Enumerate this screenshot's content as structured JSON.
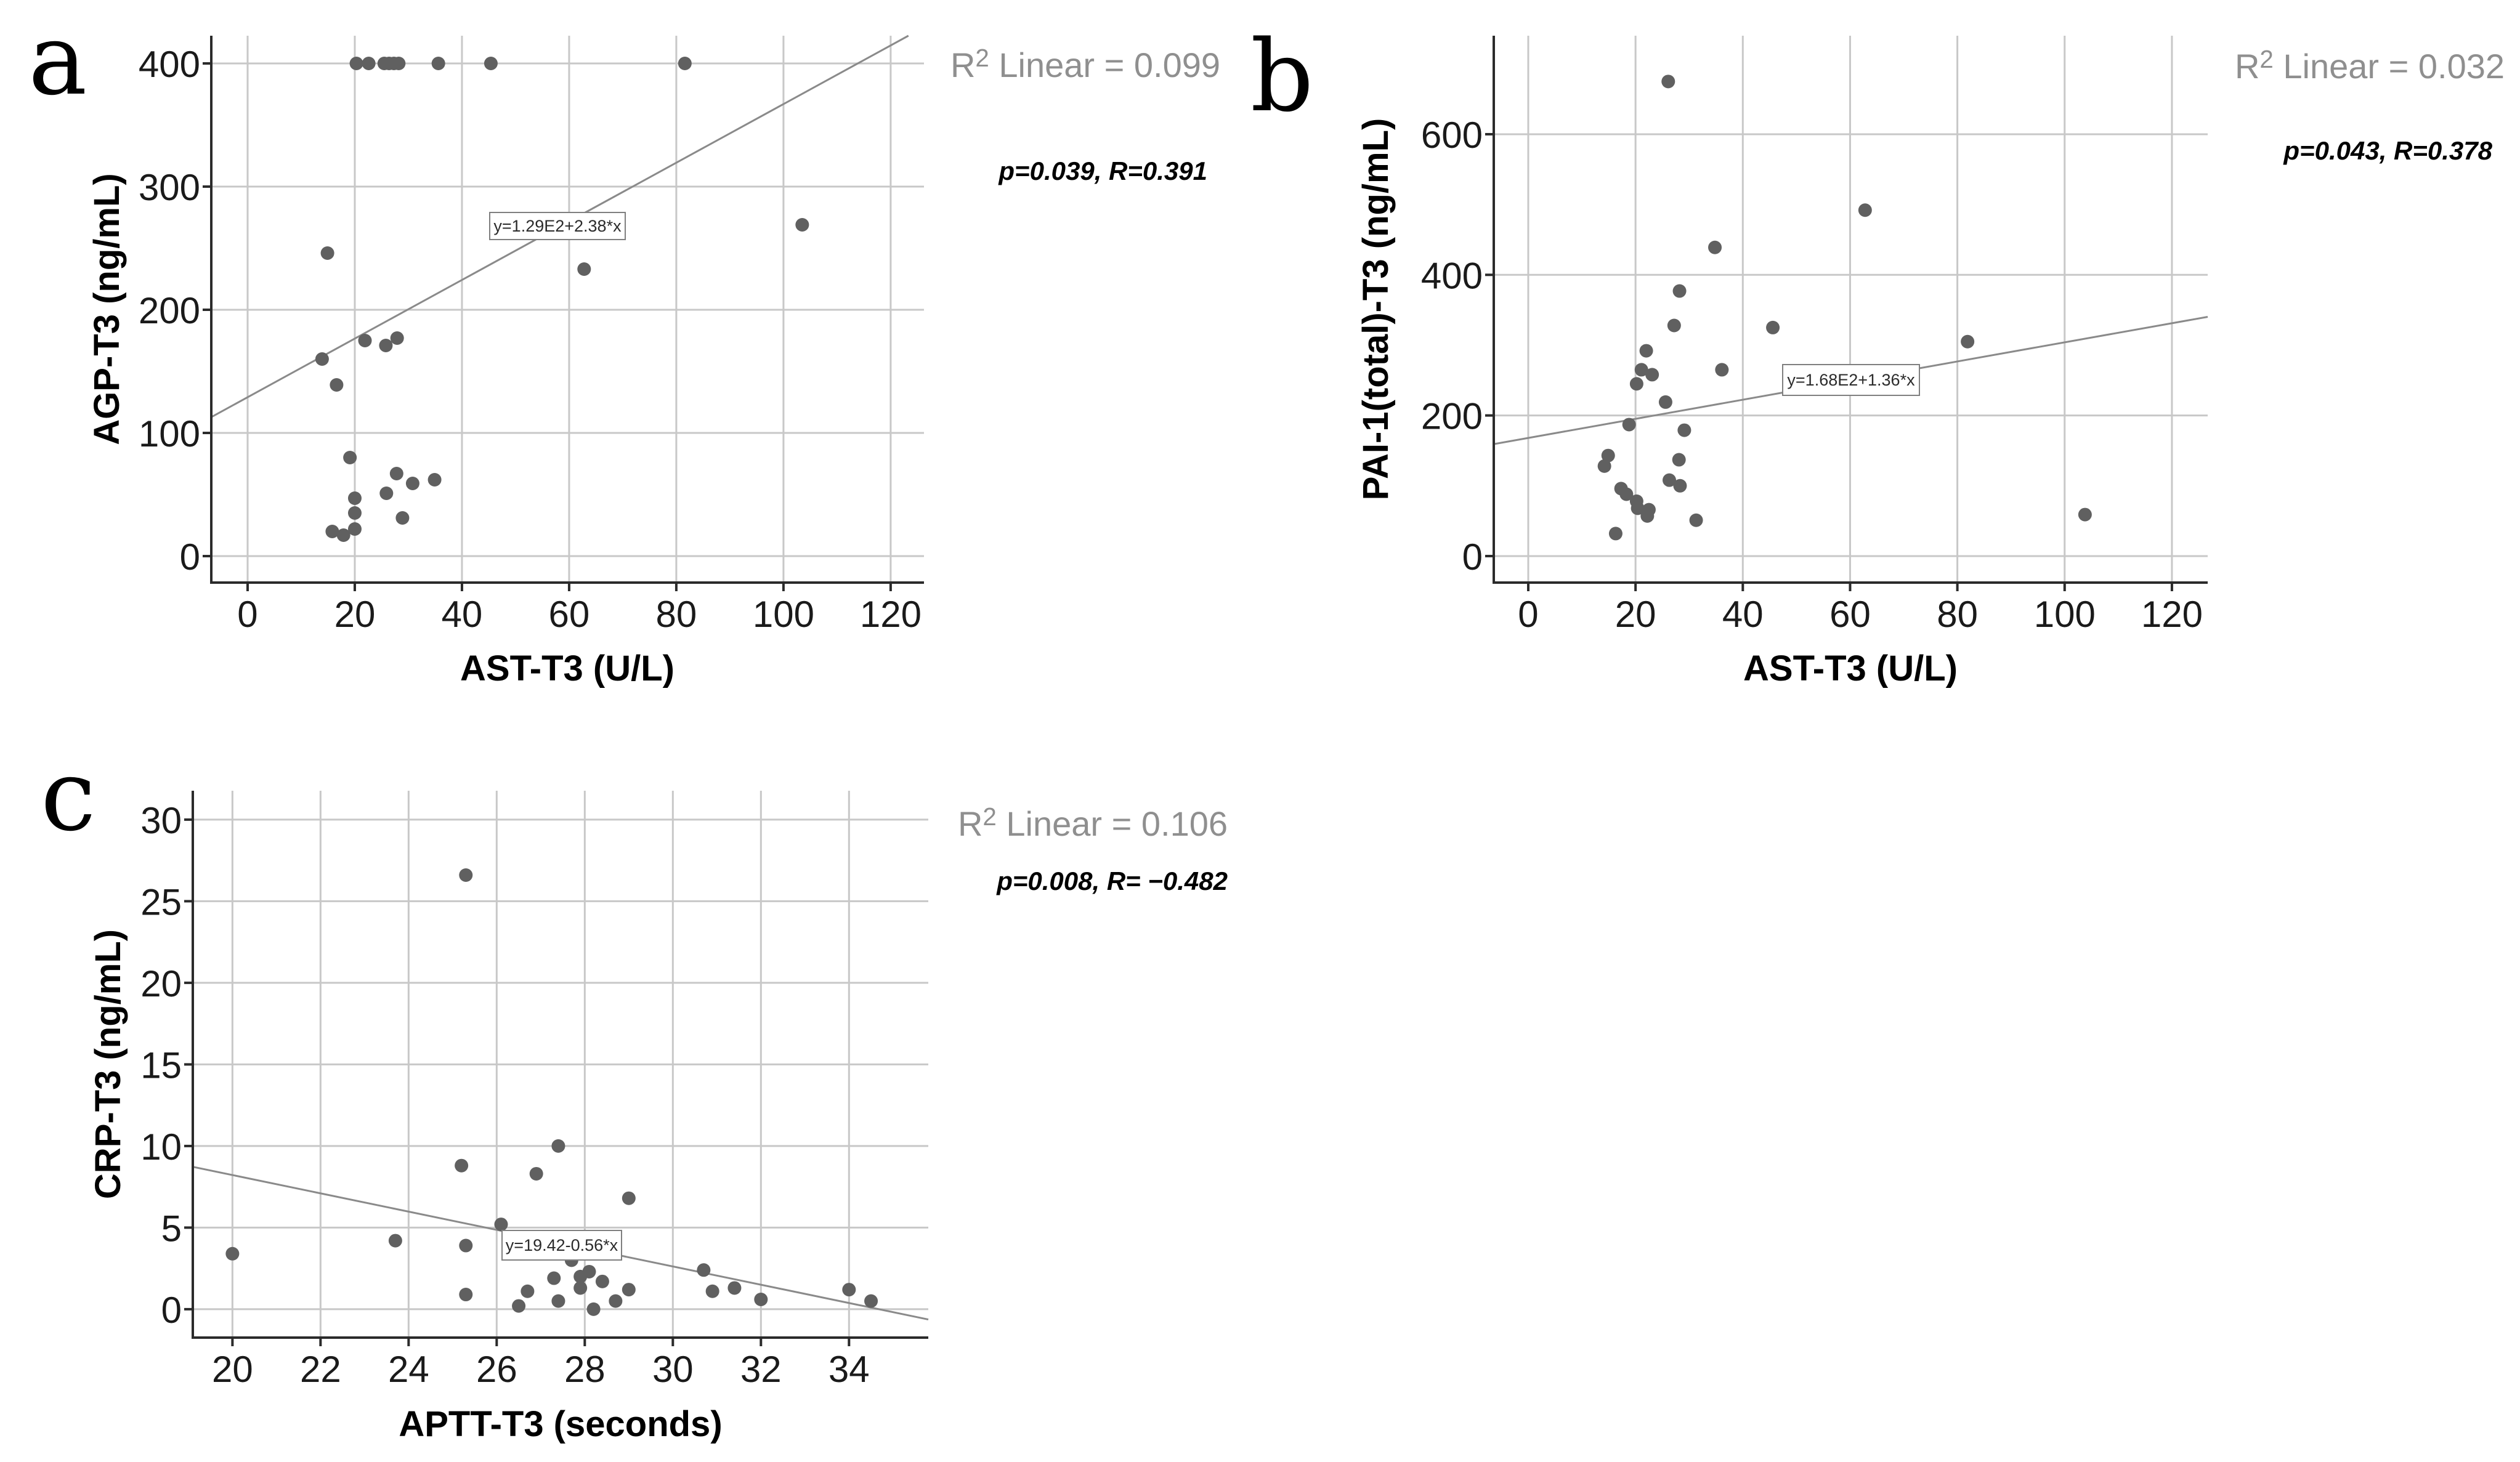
{
  "colors": {
    "dot": "#606060",
    "grid": "#c8c8c8",
    "axis": "#2b2b2b",
    "regression_line": "#8a8a8a",
    "r2_text": "#8f8f8f",
    "p_text": "#000000",
    "equation_border": "#7f7f7f",
    "tick_label": "#1a1a1a",
    "background": "#ffffff"
  },
  "chart_data": [
    {
      "id": "a",
      "type": "scatter",
      "panel_label": "a",
      "xlabel": "AST-T3 (U/L)",
      "ylabel": "AGP-T3 (ng/mL)",
      "r2": {
        "base": "R",
        "sup": "2",
        "rest": " Linear = 0.099"
      },
      "p_label": "p=0.039, R=0.391",
      "equation": "y=1.29E2+2.38*x",
      "regression": {
        "intercept": 129,
        "slope": 2.38
      },
      "xlim": [
        -6.78,
        126.22
      ],
      "ylim": [
        -21.5,
        422.5
      ],
      "xticks": [
        0,
        20,
        40,
        60,
        80,
        100,
        120
      ],
      "yticks": [
        0,
        100,
        200,
        300,
        400
      ],
      "grid": true,
      "points": [
        [
          20.3,
          400
        ],
        [
          22.6,
          400
        ],
        [
          25.5,
          400
        ],
        [
          26.4,
          400
        ],
        [
          27.3,
          400
        ],
        [
          28.2,
          400
        ],
        [
          35.6,
          400
        ],
        [
          45.4,
          400
        ],
        [
          81.6,
          400
        ],
        [
          14.9,
          246
        ],
        [
          13.9,
          160
        ],
        [
          16.6,
          139
        ],
        [
          21.9,
          175
        ],
        [
          25.8,
          171
        ],
        [
          27.9,
          177
        ],
        [
          19.1,
          80
        ],
        [
          20,
          47
        ],
        [
          20,
          35
        ],
        [
          20,
          22
        ],
        [
          15.8,
          20
        ],
        [
          17.9,
          17
        ],
        [
          25.9,
          51
        ],
        [
          27.8,
          67
        ],
        [
          30.8,
          59
        ],
        [
          34.9,
          62
        ],
        [
          28.9,
          31
        ],
        [
          62.8,
          233
        ],
        [
          103.5,
          269
        ]
      ]
    },
    {
      "id": "b",
      "type": "scatter",
      "panel_label": "b",
      "xlabel": "AST-T3 (U/L)",
      "ylabel": "PAI-1(total)-T3 (ng/mL)",
      "r2": {
        "base": "R",
        "sup": "2",
        "rest": " Linear = 0.032"
      },
      "p_label": "p=0.043, R=0.378",
      "equation": "y=1.68E2+1.36*x",
      "regression": {
        "intercept": 168,
        "slope": 1.36
      },
      "xlim": [
        -6.43,
        126.67
      ],
      "ylim": [
        -37.7,
        740.1
      ],
      "xticks": [
        0,
        20,
        40,
        60,
        80,
        100,
        120
      ],
      "yticks": [
        0,
        200,
        400,
        600
      ],
      "grid": true,
      "points": [
        [
          26.1,
          675
        ],
        [
          62.8,
          492
        ],
        [
          34.8,
          439
        ],
        [
          28.2,
          377
        ],
        [
          27.2,
          328
        ],
        [
          45.6,
          325
        ],
        [
          22,
          292
        ],
        [
          21.1,
          265
        ],
        [
          23.1,
          258
        ],
        [
          20.2,
          245
        ],
        [
          36.1,
          265
        ],
        [
          25.6,
          219
        ],
        [
          18.8,
          187
        ],
        [
          29.1,
          179
        ],
        [
          14.9,
          143
        ],
        [
          14.2,
          128
        ],
        [
          28.1,
          137
        ],
        [
          26.3,
          108
        ],
        [
          28.3,
          100
        ],
        [
          17.3,
          96
        ],
        [
          18.3,
          88
        ],
        [
          20.2,
          78
        ],
        [
          20.4,
          68
        ],
        [
          22.5,
          66
        ],
        [
          22.2,
          57
        ],
        [
          31.3,
          51
        ],
        [
          16.3,
          32
        ],
        [
          81.9,
          305
        ],
        [
          103.8,
          59
        ]
      ]
    },
    {
      "id": "c",
      "type": "scatter",
      "panel_label": "c",
      "xlabel": "APTT-T3 (seconds)",
      "ylabel": "CRP-T3 (ng/mL)",
      "r2": {
        "base": "R",
        "sup": "2",
        "rest": " Linear = 0.106"
      },
      "p_label": "p=0.008, R= −0.482",
      "equation": "y=19.42-0.56*x",
      "regression": {
        "intercept": 19.42,
        "slope": -0.56
      },
      "xlim": [
        19.1,
        35.8
      ],
      "ylim": [
        -1.74,
        31.77
      ],
      "xticks": [
        20,
        22,
        24,
        26,
        28,
        30,
        32,
        34
      ],
      "yticks": [
        0,
        5,
        10,
        15,
        20,
        25,
        30
      ],
      "grid": true,
      "points": [
        [
          25.3,
          26.6
        ],
        [
          20,
          3.4
        ],
        [
          23.7,
          4.2
        ],
        [
          25.2,
          8.8
        ],
        [
          26.1,
          5.2
        ],
        [
          25.3,
          3.9
        ],
        [
          26.9,
          8.3
        ],
        [
          27.4,
          10.0
        ],
        [
          29,
          6.8
        ],
        [
          25.3,
          0.9
        ],
        [
          26.5,
          0.2
        ],
        [
          26.7,
          1.1
        ],
        [
          27.3,
          1.9
        ],
        [
          27.4,
          0.5
        ],
        [
          27.7,
          3.0
        ],
        [
          27.9,
          2.0
        ],
        [
          28.1,
          2.3
        ],
        [
          27.9,
          1.3
        ],
        [
          28.4,
          1.7
        ],
        [
          28.2,
          0.0
        ],
        [
          28.7,
          0.5
        ],
        [
          29,
          1.2
        ],
        [
          30.7,
          2.4
        ],
        [
          30.9,
          1.1
        ],
        [
          31.4,
          1.3
        ],
        [
          32,
          0.6
        ],
        [
          34,
          1.2
        ],
        [
          34.5,
          0.5
        ]
      ]
    }
  ]
}
